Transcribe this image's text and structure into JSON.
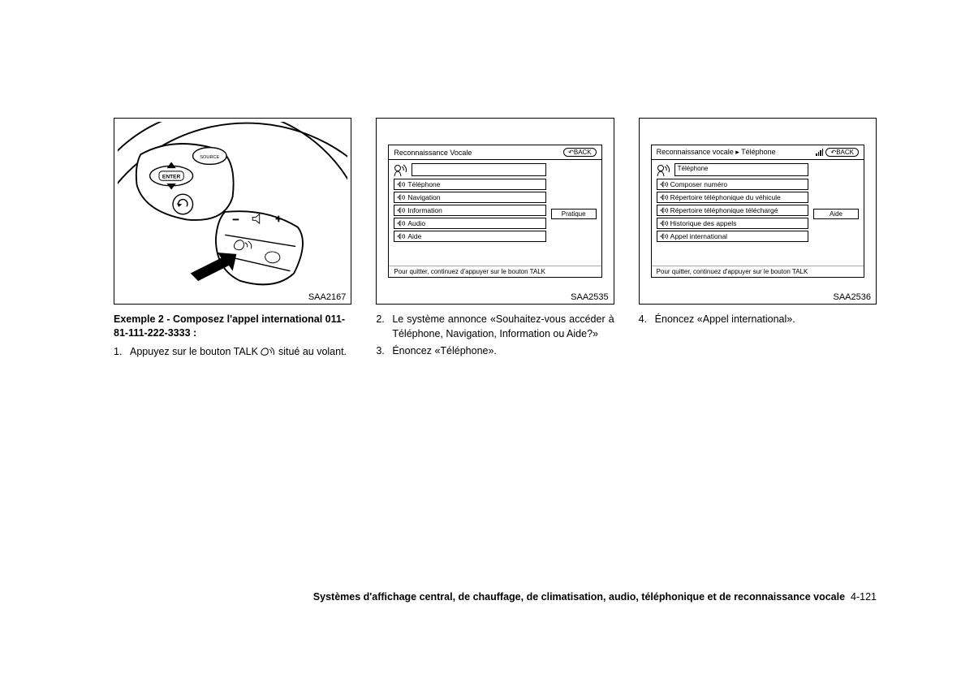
{
  "fig1": {
    "code": "SAA2167"
  },
  "fig2": {
    "code": "SAA2535",
    "head": "Reconnaissance Vocale",
    "back": "BACK",
    "items": [
      "Téléphone",
      "Navigation",
      "Information",
      "Audio",
      "Aide"
    ],
    "sidebtn": "Pratique",
    "foot": "Pour quitter, continuez d'appuyer sur le bouton TALK"
  },
  "fig3": {
    "code": "SAA2536",
    "head": "Reconnaissance vocale ▸ Téléphone",
    "back": "BACK",
    "speak": "Téléphone",
    "items": [
      "Composer numéro",
      "Répertoire téléphonique du véhicule",
      "Répertoire téléphonique téléchargé",
      "Historique des appels",
      "Appel international"
    ],
    "sidebtn": "Aide",
    "foot": "Pour quitter, continuez d'appuyer sur le bouton TALK"
  },
  "col1": {
    "heading": "Exemple 2 - Composez l'appel international 011-81-111-222-3333 :",
    "step1_num": "1.",
    "step1_a": "Appuyez sur le bouton TALK",
    "step1_b": "situé au volant."
  },
  "col2": {
    "step2_num": "2.",
    "step2": "Le système annonce «Souhaitez-vous accéder à Téléphone, Navigation, Information ou Aide?»",
    "step3_num": "3.",
    "step3": "Énoncez «Téléphone»."
  },
  "col3": {
    "step4_num": "4.",
    "step4": "Énoncez «Appel international»."
  },
  "footer": {
    "text": "Systèmes d'affichage central, de chauffage, de climatisation, audio, téléphonique et de reconnaissance vocale",
    "page": "4-121"
  }
}
